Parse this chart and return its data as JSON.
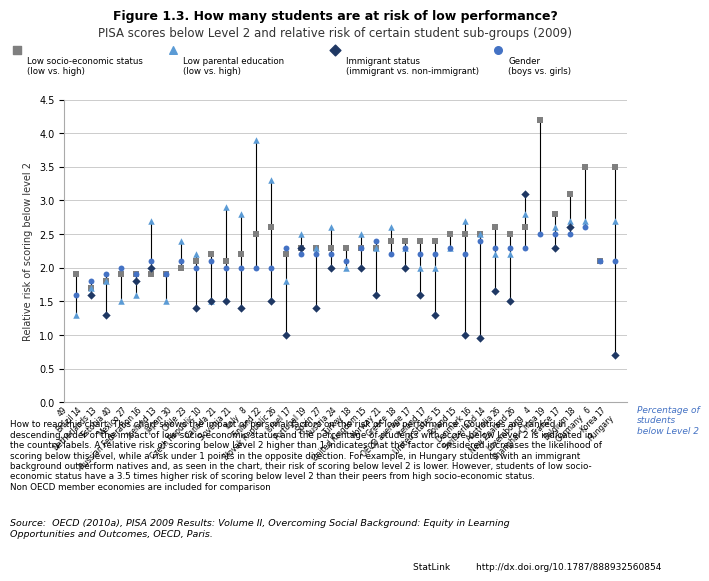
{
  "title": "Figure 1.3. How many students are at risk of low performance?",
  "subtitle": "PISA scores below Level 2 and relative risk of certain student sub-groups (2009)",
  "ylabel": "Relative risk of scoring below level 2",
  "xlabel_note": "Percentage of\nstudents\nbelow Level 2",
  "countries": [
    "Brazil",
    "Netherlands",
    "Estonia",
    "Mexico",
    "Russian Federation",
    "Iceland",
    "Japan",
    "Chile",
    "Czech Republic",
    "Canada",
    "Slovenia",
    "Italy",
    "Finland",
    "Slovak Republic",
    "Israel",
    "Portugal",
    "Spain",
    "Austria",
    "Turkey",
    "United Kingdom",
    "Norway",
    "Greece",
    "OECD average",
    "Ireland",
    "United States",
    "Poland",
    "Denmark",
    "Switzerland",
    "Australia",
    "New Zealand",
    "Luxembourg",
    "Shanghai-China",
    "France",
    "Belgium",
    "Germany",
    "Korea",
    "Hungary"
  ],
  "pct_below_level2": [
    49,
    14,
    13,
    40,
    27,
    16,
    13,
    30,
    23,
    10,
    21,
    21,
    8,
    22,
    26,
    17,
    19,
    27,
    24,
    18,
    15,
    21,
    18,
    17,
    17,
    15,
    15,
    16,
    14,
    26,
    26,
    4,
    19,
    17,
    18,
    6,
    17
  ],
  "socio_economic": [
    1.9,
    1.7,
    1.8,
    1.9,
    1.9,
    1.9,
    1.9,
    2.0,
    2.1,
    2.2,
    2.1,
    2.2,
    2.5,
    2.6,
    2.2,
    2.3,
    2.3,
    2.3,
    2.3,
    2.3,
    2.3,
    2.4,
    2.4,
    2.4,
    2.4,
    2.5,
    2.5,
    2.5,
    2.6,
    2.5,
    2.6,
    4.2,
    2.8,
    3.1,
    3.5,
    2.1,
    3.5
  ],
  "parental_ed": [
    1.3,
    1.7,
    1.8,
    1.5,
    1.6,
    2.7,
    1.5,
    2.4,
    2.2,
    1.5,
    2.9,
    2.8,
    3.9,
    3.3,
    1.8,
    2.5,
    2.3,
    2.6,
    2.0,
    2.5,
    2.3,
    2.6,
    2.3,
    2.0,
    2.0,
    2.3,
    2.7,
    2.5,
    2.2,
    2.2,
    2.8,
    null,
    2.6,
    2.7,
    2.7,
    null,
    2.7
  ],
  "immigrant": [
    null,
    1.6,
    1.3,
    null,
    1.8,
    2.0,
    null,
    null,
    1.4,
    1.5,
    1.5,
    1.4,
    null,
    1.5,
    1.0,
    2.3,
    1.4,
    2.0,
    null,
    2.0,
    1.6,
    null,
    2.0,
    1.6,
    1.3,
    null,
    1.0,
    0.95,
    1.65,
    1.5,
    3.1,
    null,
    2.3,
    2.6,
    null,
    null,
    0.7
  ],
  "gender": [
    1.6,
    1.8,
    1.9,
    2.0,
    1.9,
    2.1,
    1.9,
    2.1,
    2.0,
    2.1,
    2.0,
    2.0,
    2.0,
    2.0,
    2.3,
    2.2,
    2.2,
    2.2,
    2.1,
    2.3,
    2.4,
    2.2,
    2.3,
    2.2,
    2.2,
    2.3,
    2.2,
    2.4,
    2.3,
    2.3,
    2.3,
    2.5,
    2.5,
    2.5,
    2.6,
    2.1,
    2.1
  ],
  "colors": {
    "socio_economic": "#7f7f7f",
    "parental_ed": "#5b9bd5",
    "immigrant": "#1f3864",
    "gender": "#4472c4",
    "line": "#000000"
  },
  "how_to_read": "How to read this chart: This chart shows the impact of personal factors on the risk of low performance. Countries are ranked in\ndescending order of the impact of low socio-economic status and the percentage of students with score below Level 2 is indicated in\nthe country labels. A relative risk of scoring below Level 2 higher than 1 indicates that the factor considered increases the likelihood of\nscoring below this level, while a risk under 1 points in the opposite direction. For example, in Hungary students with an immigrant\nbackground outperform natives and, as seen in the chart, their risk of scoring below level 2 is lower. However, students of low socio-\neconomic status have a 3.5 times higher risk of scoring below level 2 than their peers from high socio-economic status.\nNon OECD member economies are included for comparison",
  "source": "Source:  OECD (2010a), PISA 2009 Results: Volume II, Overcoming Social Background: Equity in Learning\nOpportunities and Outcomes, OECD, Paris.",
  "statlink": "StatLink         http://dx.doi.org/10.1787/888932560854"
}
